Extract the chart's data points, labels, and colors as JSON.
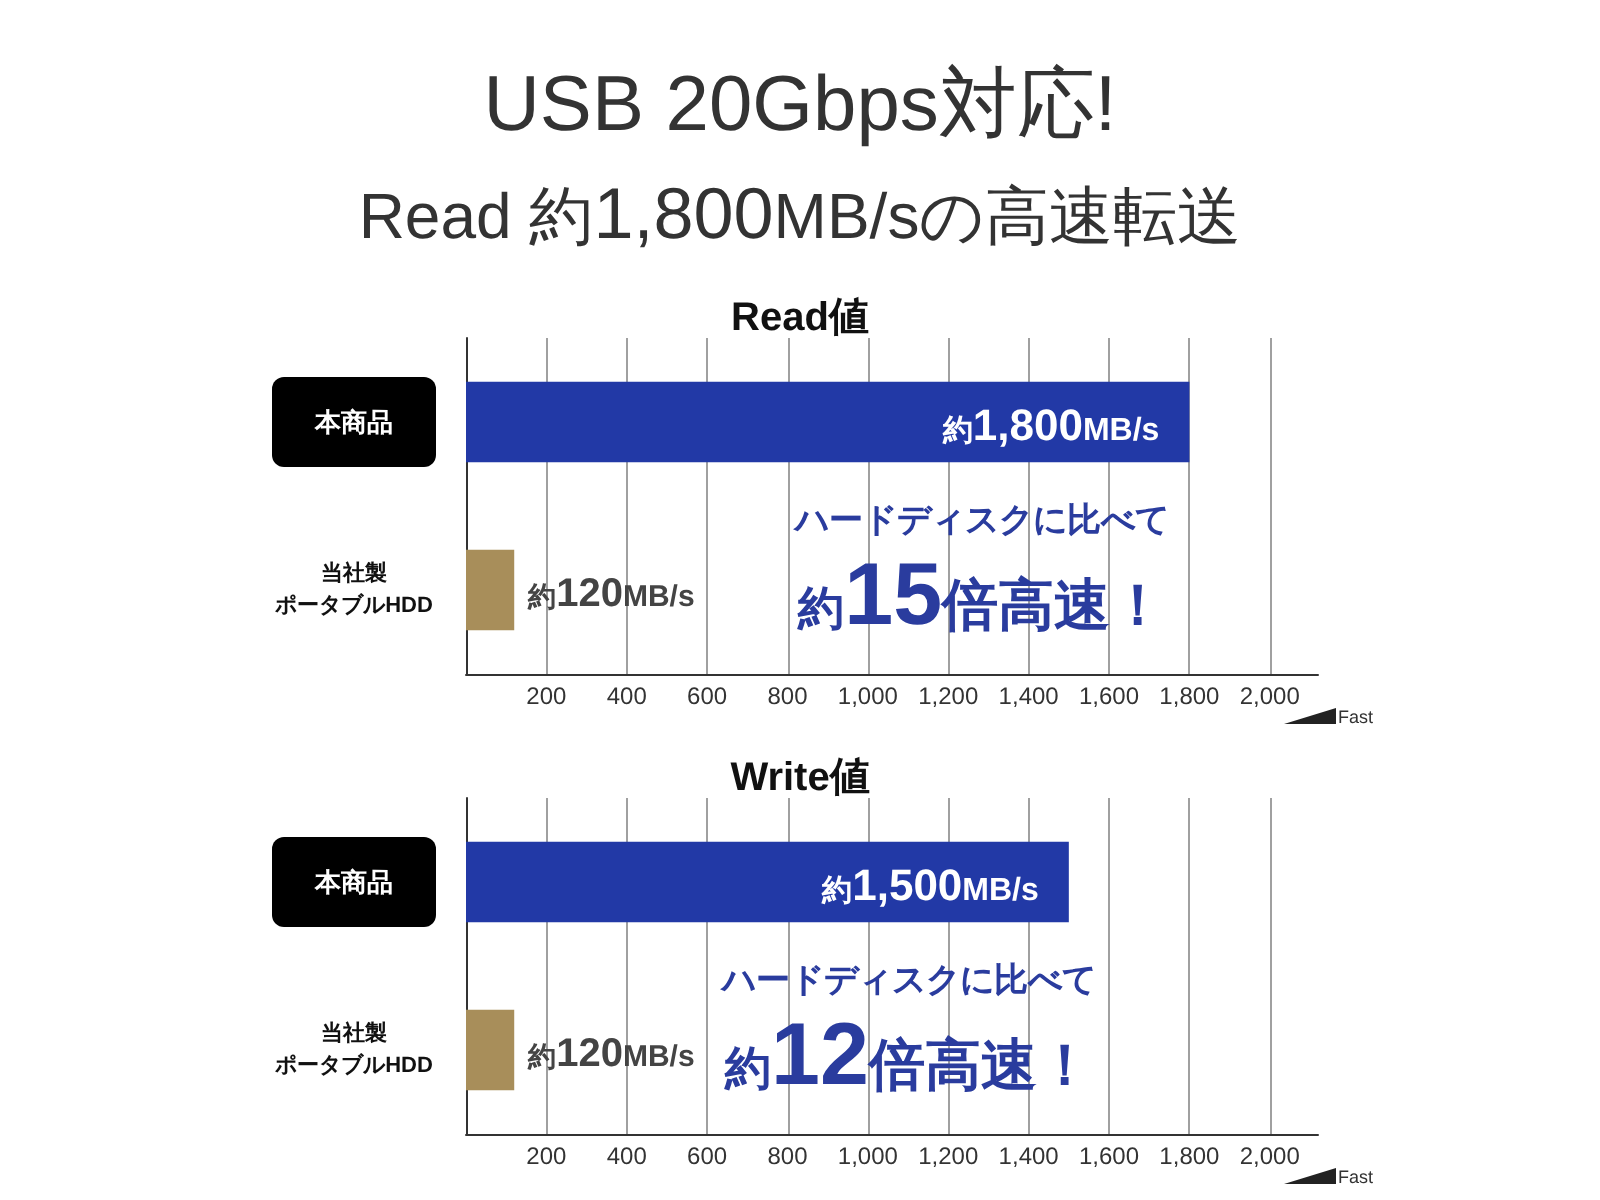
{
  "chart_data": [
    {
      "type": "other",
      "title": "USB 20Gbps対応!",
      "subtitle": "Read 約1,800MB/sの高速転送"
    },
    {
      "type": "bar",
      "orientation": "horizontal",
      "title": "Read値",
      "categories": [
        "本商品",
        "当社製ポータブルHDD"
      ],
      "values": [
        1800,
        120
      ],
      "colors": [
        "#2239a6",
        "#a88e5a"
      ],
      "value_labels": [
        "約1,800MB/s",
        "約120MB/s"
      ],
      "xlabel": "Fast",
      "xlim": [
        0,
        2120
      ],
      "xticks": [
        200,
        400,
        600,
        800,
        {
          "value": 1000,
          "label": "1,000"
        },
        {
          "value": 1200,
          "label": "1,200"
        },
        {
          "value": 1400,
          "label": "1,400"
        },
        {
          "value": 1600,
          "label": "1,600"
        },
        {
          "value": 1800,
          "label": "1,800"
        },
        {
          "value": 2000,
          "label": "2,000"
        }
      ],
      "grid": "x",
      "annotations": [
        "ハードディスクに比べて",
        "約15倍高速！"
      ]
    },
    {
      "type": "bar",
      "orientation": "horizontal",
      "title": "Write値",
      "categories": [
        "本商品",
        "当社製ポータブルHDD"
      ],
      "values": [
        1500,
        120
      ],
      "colors": [
        "#2239a6",
        "#a88e5a"
      ],
      "value_labels": [
        "約1,500MB/s",
        "約120MB/s"
      ],
      "xlabel": "Fast",
      "xlim": [
        0,
        2120
      ],
      "xticks": [
        200,
        400,
        600,
        800,
        {
          "value": 1000,
          "label": "1,000"
        },
        {
          "value": 1200,
          "label": "1,200"
        },
        {
          "value": 1400,
          "label": "1,400"
        },
        {
          "value": 1600,
          "label": "1,600"
        },
        {
          "value": 1800,
          "label": "1,800"
        },
        {
          "value": 2000,
          "label": "2,000"
        }
      ],
      "grid": "x",
      "annotations": [
        "ハードディスクに比べて",
        "約12倍高速！"
      ]
    }
  ]
}
